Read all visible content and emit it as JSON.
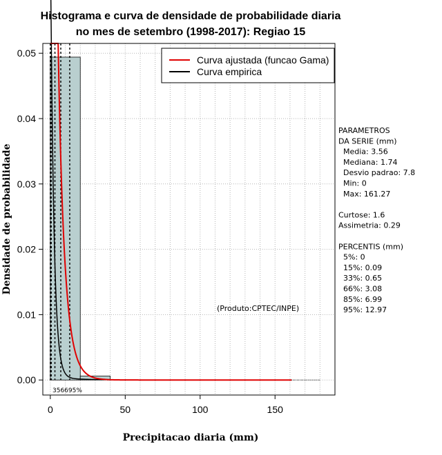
{
  "chart_data": {
    "type": "histogram",
    "title_line1": "Histograma e curva de densidade de probabilidade diaria",
    "title_line2": "no mes de setembro (1998-2017): Regiao 15",
    "xlabel": "Precipitacao diaria (mm)",
    "ylabel": "Densidade de probabilidade",
    "xlim": [
      -5,
      190
    ],
    "ylim": [
      -0.0023,
      0.0515
    ],
    "xticks": [
      0,
      50,
      100,
      150
    ],
    "yticks": [
      0.0,
      0.01,
      0.02,
      0.03,
      0.04,
      0.05
    ],
    "ytick_labels": [
      "0.00",
      "0.01",
      "0.02",
      "0.03",
      "0.04",
      "0.05"
    ],
    "grid": true,
    "bins": [
      {
        "x0": 0,
        "x1": 20,
        "density": 0.0494
      },
      {
        "x0": 20,
        "x1": 40,
        "density": 0.0006
      },
      {
        "x0": 40,
        "x1": 60,
        "density": 5e-05
      },
      {
        "x0": 60,
        "x1": 80,
        "density": 2e-05
      },
      {
        "x0": 80,
        "x1": 100,
        "density": 1e-05
      },
      {
        "x0": 100,
        "x1": 120,
        "density": 1e-05
      },
      {
        "x0": 120,
        "x1": 140,
        "density": 0.0
      },
      {
        "x0": 140,
        "x1": 160,
        "density": 0.0
      },
      {
        "x0": 160,
        "x1": 180,
        "density": 1e-05
      }
    ],
    "series": [
      {
        "name": "Curva ajustada (funcao Gama)",
        "color": "#e00000"
      },
      {
        "name": "Curva empirica",
        "color": "#000000"
      }
    ],
    "gamma_fit": {
      "mean": 3.56,
      "x_max": 161.27
    },
    "percentile_lines": [
      {
        "label": "5%",
        "x": 0
      },
      {
        "label": "15%",
        "x": 0.09
      },
      {
        "label": "33%",
        "x": 0.65
      },
      {
        "label": "66%",
        "x": 3.08
      },
      {
        "label": "85%",
        "x": 6.99
      },
      {
        "label": "95%",
        "x": 12.97
      }
    ],
    "bottom_label": "356695%",
    "legend_position": "top-right",
    "annotation": "(Produto:CPTEC/INPE)",
    "bar_color": "#b9cfcf"
  },
  "stats_panel": {
    "lines": [
      "PARAMETROS",
      "DA SERIE (mm)",
      "  Media: 3.56",
      "  Mediana: 1.74",
      "  Desvio padrao: 7.8",
      "  Min: 0",
      "  Max: 161.27",
      "",
      "Curtose: 1.6",
      "Assimetria: 0.29",
      "",
      "PERCENTIS (mm)",
      "  5%: 0",
      "  15%: 0.09",
      "  33%: 0.65",
      "  66%: 3.08",
      "  85%: 6.99",
      "  95%: 12.97"
    ]
  }
}
